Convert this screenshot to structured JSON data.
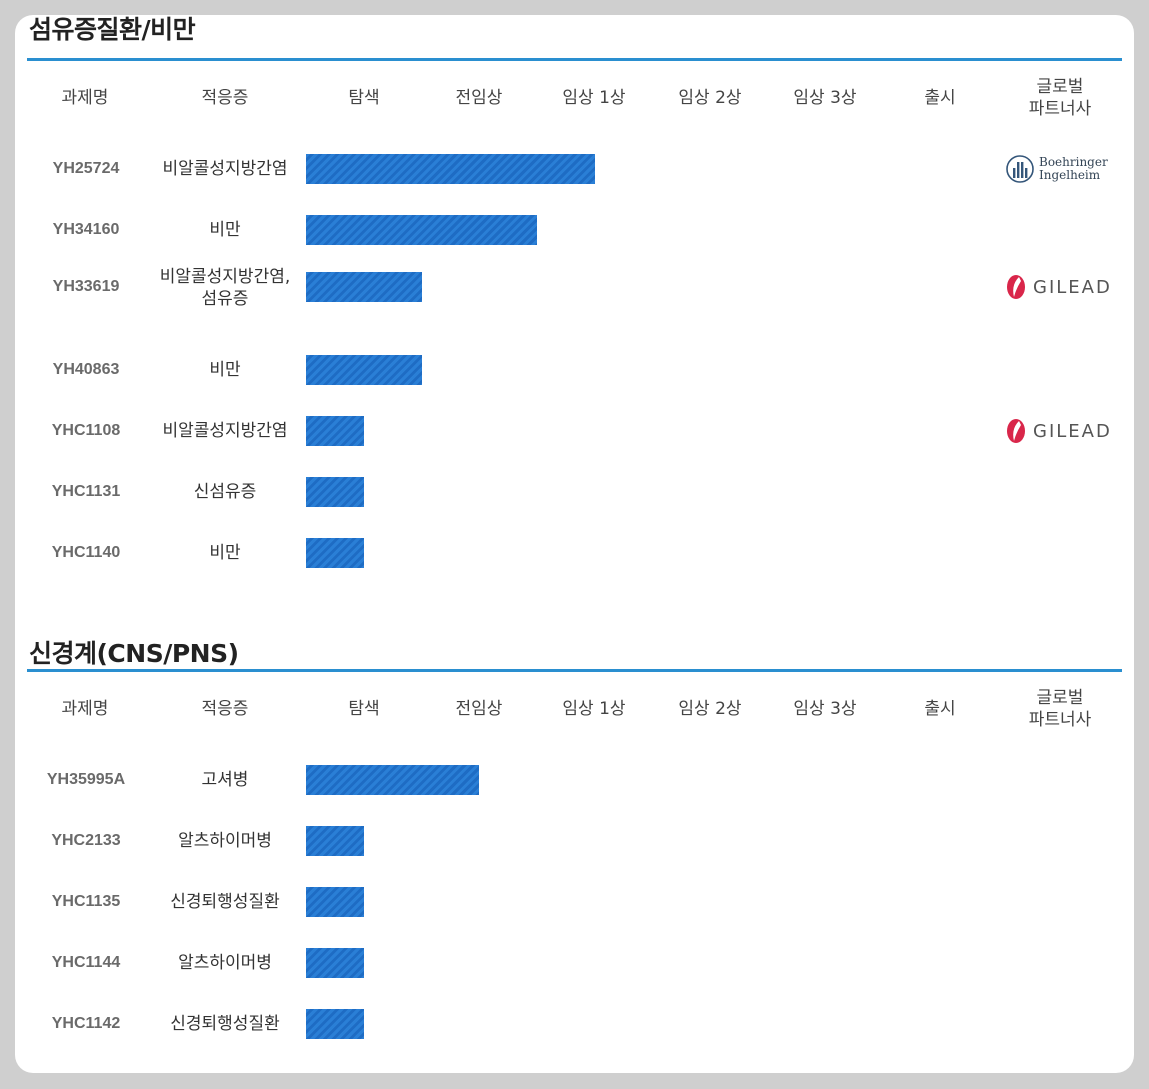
{
  "columns": [
    "과제명",
    "적응증",
    "탐색",
    "전임상",
    "임상 1상",
    "임상 2상",
    "임상 3상",
    "출시",
    "글로벌\n파트너사"
  ],
  "sections": [
    {
      "title": "섬유증질환/비만",
      "rows": [
        {
          "code": "YH25724",
          "indication": "비알콜성지방간염",
          "stage_level": 2.5,
          "partner": "Boehringer Ingelheim"
        },
        {
          "code": "YH34160",
          "indication": "비만",
          "stage_level": 2.0,
          "partner": ""
        },
        {
          "code": "YH33619",
          "indication": "비알콜성지방간염,\n섬유증",
          "stage_level": 1.0,
          "partner": "GILEAD"
        },
        {
          "code": "YH40863",
          "indication": "비만",
          "stage_level": 1.0,
          "partner": ""
        },
        {
          "code": "YHC1108",
          "indication": "비알콜성지방간염",
          "stage_level": 0.5,
          "partner": "GILEAD"
        },
        {
          "code": "YHC1131",
          "indication": "신섬유증",
          "stage_level": 0.5,
          "partner": ""
        },
        {
          "code": "YHC1140",
          "indication": "비만",
          "stage_level": 0.5,
          "partner": ""
        }
      ]
    },
    {
      "title": "신경계(CNS/PNS)",
      "rows": [
        {
          "code": "YH35995A",
          "indication": "고셔병",
          "stage_level": 1.5,
          "partner": ""
        },
        {
          "code": "YHC2133",
          "indication": "알츠하이머병",
          "stage_level": 0.5,
          "partner": ""
        },
        {
          "code": "YHC1135",
          "indication": "신경퇴행성질환",
          "stage_level": 0.5,
          "partner": ""
        },
        {
          "code": "YHC1144",
          "indication": "알츠하이머병",
          "stage_level": 0.5,
          "partner": ""
        },
        {
          "code": "YHC1142",
          "indication": "신경퇴행성질환",
          "stage_level": 0.5,
          "partner": ""
        }
      ]
    }
  ],
  "colors": {
    "bar": "#2a7fd6",
    "rule": "#2a8fd0",
    "gilead_red": "#d9264a"
  }
}
